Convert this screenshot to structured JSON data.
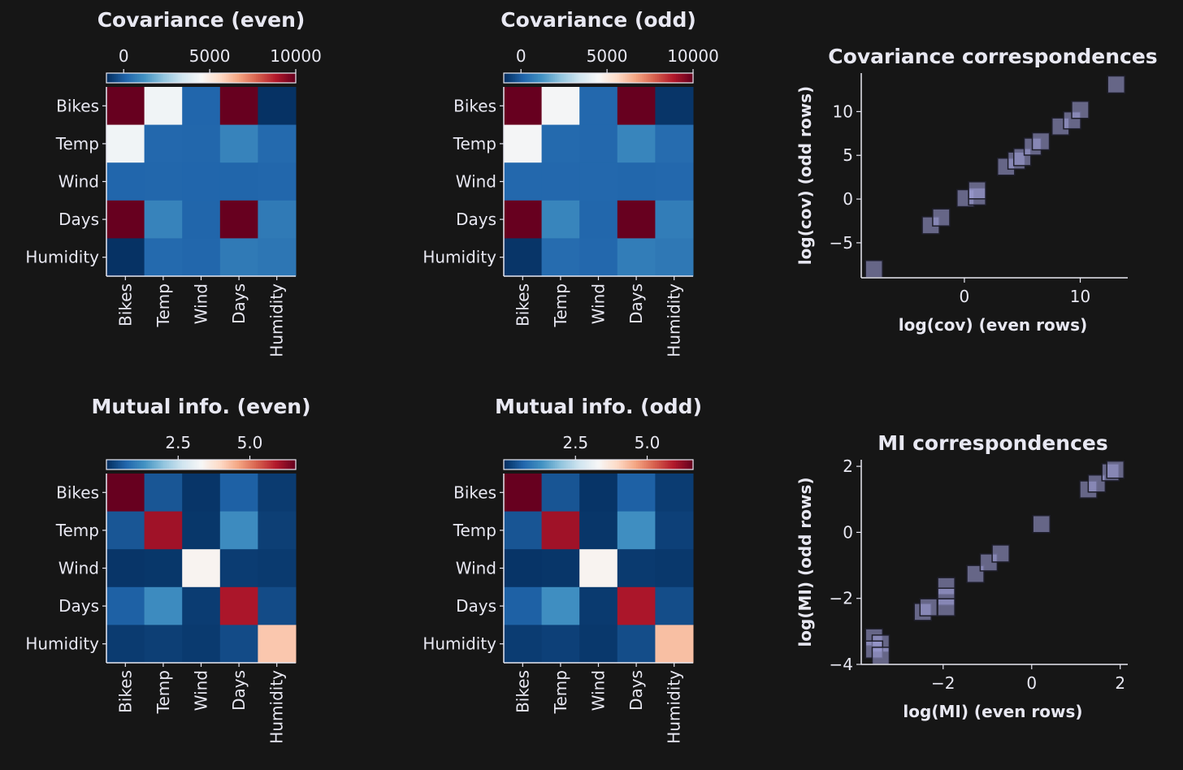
{
  "chart_data": [
    {
      "type": "heatmap",
      "title": "Covariance (even)",
      "labels": [
        "Bikes",
        "Temp",
        "Wind",
        "Days",
        "Humidity"
      ],
      "colormap": "RdBu_r",
      "vmin": -1000,
      "vmax": 10000,
      "colorbar_ticks": [
        0,
        5000,
        10000
      ],
      "colorbar_tick_labels": [
        "0",
        "5000",
        "10000"
      ],
      "values": [
        [
          12000,
          4300,
          100,
          12000,
          -950
        ],
        [
          4300,
          150,
          120,
          800,
          200
        ],
        [
          100,
          120,
          100,
          90,
          120
        ],
        [
          12000,
          800,
          90,
          12000,
          600
        ],
        [
          -950,
          200,
          120,
          600,
          500
        ]
      ]
    },
    {
      "type": "heatmap",
      "title": "Covariance (odd)",
      "labels": [
        "Bikes",
        "Temp",
        "Wind",
        "Days",
        "Humidity"
      ],
      "colormap": "RdBu_r",
      "vmin": -1000,
      "vmax": 10000,
      "colorbar_ticks": [
        0,
        5000,
        10000
      ],
      "colorbar_tick_labels": [
        "0",
        "5000",
        "10000"
      ],
      "values": [
        [
          12000,
          4400,
          150,
          12000,
          -900
        ],
        [
          4400,
          200,
          150,
          850,
          250
        ],
        [
          150,
          150,
          150,
          120,
          150
        ],
        [
          12000,
          850,
          120,
          12000,
          650
        ],
        [
          -900,
          250,
          150,
          650,
          550
        ]
      ]
    },
    {
      "type": "scatter",
      "title": "Covariance correspondences",
      "xlabel": "log(cov) (even rows)",
      "ylabel": "log(cov) (odd rows)",
      "xlim": [
        -8.9,
        14.1
      ],
      "ylim": [
        -9,
        14.4
      ],
      "xticks": [
        0,
        10
      ],
      "xtick_labels": [
        "0",
        "10"
      ],
      "yticks": [
        -5,
        0,
        5,
        10
      ],
      "ytick_labels": [
        "−5",
        "0",
        "5",
        "10"
      ],
      "points": [
        [
          13.1,
          13.1
        ],
        [
          -7.8,
          -8.0
        ],
        [
          -2.9,
          -3.0
        ],
        [
          -2.0,
          -2.1
        ],
        [
          0.1,
          0.1
        ],
        [
          1.1,
          0.3
        ],
        [
          1.1,
          1.0
        ],
        [
          3.6,
          3.7
        ],
        [
          4.5,
          4.4
        ],
        [
          5.0,
          4.8
        ],
        [
          5.9,
          6.0
        ],
        [
          6.6,
          6.6
        ],
        [
          8.3,
          8.3
        ],
        [
          9.3,
          9.0
        ],
        [
          10.0,
          10.2
        ]
      ]
    },
    {
      "type": "heatmap",
      "title": "Mutual info. (even)",
      "labels": [
        "Bikes",
        "Temp",
        "Wind",
        "Days",
        "Humidity"
      ],
      "colormap": "RdBu_r",
      "vmin": 0,
      "vmax": 6.6,
      "colorbar_ticks": [
        2.5,
        5.0
      ],
      "colorbar_tick_labels": [
        "2.5",
        "5.0"
      ],
      "values": [
        [
          6.6,
          0.46,
          0.06,
          0.6,
          0.13
        ],
        [
          0.46,
          6.1,
          0.08,
          1.2,
          0.18
        ],
        [
          0.06,
          0.08,
          3.4,
          0.15,
          0.12
        ],
        [
          0.6,
          1.2,
          0.15,
          6.0,
          0.33
        ],
        [
          0.13,
          0.18,
          0.12,
          0.33,
          4.2
        ]
      ]
    },
    {
      "type": "heatmap",
      "title": "Mutual info. (odd)",
      "labels": [
        "Bikes",
        "Temp",
        "Wind",
        "Days",
        "Humidity"
      ],
      "colormap": "RdBu_r",
      "vmin": 0,
      "vmax": 6.6,
      "colorbar_ticks": [
        2.5,
        5.0
      ],
      "colorbar_tick_labels": [
        "2.5",
        "5.0"
      ],
      "values": [
        [
          6.6,
          0.45,
          0.05,
          0.6,
          0.15
        ],
        [
          0.45,
          6.1,
          0.07,
          1.25,
          0.2
        ],
        [
          0.05,
          0.07,
          3.4,
          0.12,
          0.1
        ],
        [
          0.6,
          1.25,
          0.12,
          6.0,
          0.35
        ],
        [
          0.15,
          0.2,
          0.1,
          0.35,
          4.3
        ]
      ]
    },
    {
      "type": "scatter",
      "title": "MI correspondences",
      "xlabel": "log(MI) (even rows)",
      "ylabel": "log(MI) (odd rows)",
      "xlim": [
        -3.85,
        2.17
      ],
      "ylim": [
        -4,
        2.2
      ],
      "xticks": [
        -2,
        0,
        2
      ],
      "xtick_labels": [
        "−2",
        "0",
        "2"
      ],
      "yticks": [
        -4,
        -2,
        0,
        2
      ],
      "ytick_labels": [
        "−4",
        "−2",
        "0",
        "2"
      ],
      "points": [
        [
          -3.56,
          -3.18
        ],
        [
          -3.41,
          -3.37
        ],
        [
          -3.56,
          -3.55
        ],
        [
          -3.41,
          -3.74
        ],
        [
          -2.46,
          -2.41
        ],
        [
          -2.33,
          -2.27
        ],
        [
          -1.93,
          -1.63
        ],
        [
          -1.93,
          -1.95
        ],
        [
          -1.93,
          -2.27
        ],
        [
          -1.27,
          -1.26
        ],
        [
          -0.97,
          -0.91
        ],
        [
          -0.7,
          -0.64
        ],
        [
          0.22,
          0.25
        ],
        [
          1.28,
          1.3
        ],
        [
          1.47,
          1.48
        ],
        [
          1.78,
          1.82
        ],
        [
          1.89,
          1.9
        ]
      ]
    }
  ],
  "colors": {
    "background": "#161616",
    "text": "#e8e8f2",
    "marker": "#9c9cd4"
  }
}
